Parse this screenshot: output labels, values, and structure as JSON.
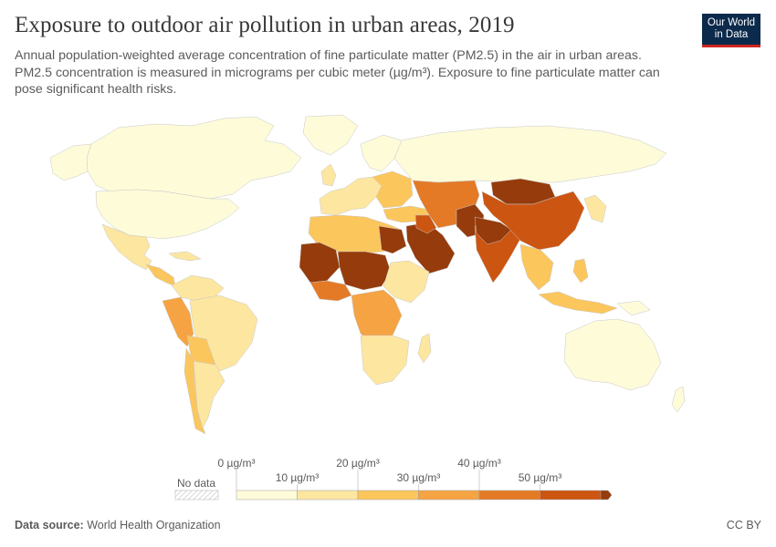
{
  "header": {
    "title": "Exposure to outdoor air pollution in urban areas, 2019",
    "subtitle": "Annual population-weighted average concentration of fine particulate matter (PM2.5) in the air in urban areas. PM2.5 concentration is measured in micrograms per cubic meter (µg/m³). Exposure to fine particulate matter can pose significant health risks.",
    "logo_text": "Our World in Data"
  },
  "legend": {
    "no_data_label": "No data",
    "bins": [
      {
        "label": "0 µg/m³",
        "color": "#fefbd9"
      },
      {
        "label": "10 µg/m³",
        "color": "#fde6a0"
      },
      {
        "label": "20 µg/m³",
        "color": "#fbc65c"
      },
      {
        "label": "30 µg/m³",
        "color": "#f5a343"
      },
      {
        "label": "40 µg/m³",
        "color": "#e47a26"
      },
      {
        "label": "50 µg/m³",
        "color": "#cc5512"
      }
    ],
    "overflow_color": "#963b0b",
    "no_data_pattern": "hatched-gray"
  },
  "colors": {
    "ocean": "#ffffff",
    "border": "#c8c8c8",
    "brand": "#0c2a4b",
    "brand_accent": "#ce261e"
  },
  "footer": {
    "source_label": "Data source:",
    "source_value": "World Health Organization",
    "license": "CC BY"
  }
}
